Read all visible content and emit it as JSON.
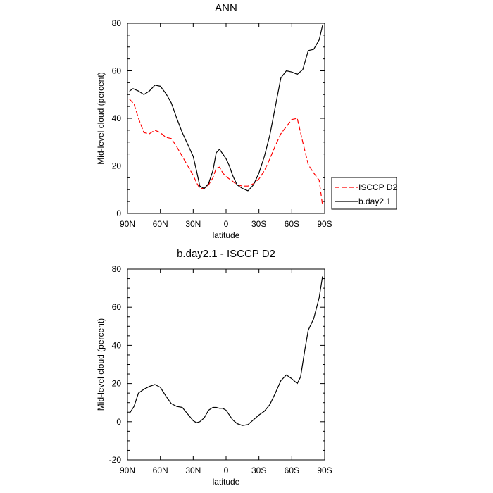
{
  "chart_data": [
    {
      "type": "line",
      "title": "ANN",
      "xlabel": "latitude",
      "ylabel": "Mid-level cloud (percent)",
      "xlim": [
        90,
        -90
      ],
      "ylim": [
        0,
        80
      ],
      "xticks": [
        90,
        60,
        30,
        0,
        -30,
        -60,
        -90
      ],
      "xtick_labels": [
        "90N",
        "60N",
        "30N",
        "0",
        "30S",
        "60S",
        "90S"
      ],
      "yticks": [
        0,
        20,
        40,
        60,
        80
      ],
      "yticks_minor": [
        5,
        10,
        15,
        25,
        30,
        35,
        45,
        50,
        55,
        65,
        70,
        75
      ],
      "legend": {
        "placement": "right",
        "entries": [
          "ISCCP D2",
          "b.day2.1"
        ]
      },
      "series": [
        {
          "name": "ISCCP D2",
          "color": "#ff0000",
          "dash": "dashed",
          "x": [
            88,
            84,
            80,
            75,
            70,
            65,
            60,
            55,
            50,
            45,
            40,
            35,
            30,
            27,
            24,
            20,
            16,
            12,
            9,
            6,
            3,
            0,
            -3,
            -6,
            -10,
            -15,
            -20,
            -25,
            -30,
            -35,
            -40,
            -45,
            -50,
            -55,
            -60,
            -65,
            -70,
            -75,
            -80,
            -85,
            -88
          ],
          "values": [
            48,
            46,
            40,
            34,
            33.5,
            35,
            34,
            32,
            31.5,
            28,
            24,
            20,
            16,
            13,
            10.5,
            10.5,
            12,
            15,
            19,
            19.5,
            17,
            15.5,
            14.5,
            13.5,
            12,
            11.5,
            11.5,
            12.5,
            14.5,
            18,
            23,
            28.5,
            33.5,
            36.5,
            39.5,
            40,
            30,
            20.5,
            17,
            14,
            3.5
          ]
        },
        {
          "name": "b.day2.1",
          "color": "#000000",
          "dash": "solid",
          "x": [
            88,
            85,
            80,
            75,
            70,
            65,
            60,
            55,
            50,
            45,
            40,
            35,
            30,
            27,
            24,
            20,
            16,
            12,
            9,
            6,
            3,
            0,
            -3,
            -6,
            -10,
            -15,
            -20,
            -25,
            -30,
            -35,
            -40,
            -45,
            -50,
            -55,
            -60,
            -65,
            -70,
            -75,
            -80,
            -85,
            -88
          ],
          "values": [
            51.5,
            52.5,
            51.5,
            50,
            51.5,
            54,
            53.5,
            50.5,
            46.5,
            40,
            34,
            29,
            24,
            18,
            11.5,
            10.5,
            12.5,
            18,
            25.5,
            27,
            25,
            23,
            20,
            16,
            12,
            10.5,
            9.5,
            12,
            17,
            24,
            33,
            45,
            57,
            60,
            59.5,
            58.5,
            60.5,
            68.5,
            69,
            73,
            79
          ]
        }
      ]
    },
    {
      "type": "line",
      "title": "b.day2.1 - ISCCP D2",
      "xlabel": "latitude",
      "ylabel": "Mid-level cloud (percent)",
      "xlim": [
        90,
        -90
      ],
      "ylim": [
        -20,
        80
      ],
      "xticks": [
        90,
        60,
        30,
        0,
        -30,
        -60,
        -90
      ],
      "xtick_labels": [
        "90N",
        "60N",
        "30N",
        "0",
        "30S",
        "60S",
        "90S"
      ],
      "yticks": [
        -20,
        0,
        20,
        40,
        60,
        80
      ],
      "yticks_minor": [
        -15,
        -10,
        -5,
        5,
        10,
        15,
        25,
        30,
        35,
        45,
        50,
        55,
        65,
        70,
        75
      ],
      "series": [
        {
          "name": "b.day2.1 - ISCCP D2",
          "color": "#000000",
          "dash": "solid",
          "x": [
            88,
            84,
            80,
            75,
            70,
            65,
            60,
            55,
            50,
            45,
            40,
            35,
            30,
            27,
            24,
            20,
            16,
            12,
            9,
            6,
            3,
            0,
            -3,
            -6,
            -10,
            -15,
            -20,
            -25,
            -30,
            -35,
            -40,
            -45,
            -50,
            -55,
            -60,
            -65,
            -68,
            -72,
            -75,
            -80,
            -85,
            -88
          ],
          "values": [
            4.5,
            8,
            15,
            17,
            18.5,
            19.5,
            18,
            13.5,
            9.5,
            8,
            7.5,
            4,
            0.5,
            -0.5,
            0,
            2,
            6,
            7.5,
            7.5,
            7,
            7,
            6,
            3.5,
            1,
            -1,
            -2,
            -1.5,
            1,
            3.5,
            5.5,
            9,
            15,
            21.5,
            24.5,
            22.5,
            20,
            23.5,
            38,
            48,
            54,
            65,
            76
          ]
        }
      ]
    }
  ]
}
